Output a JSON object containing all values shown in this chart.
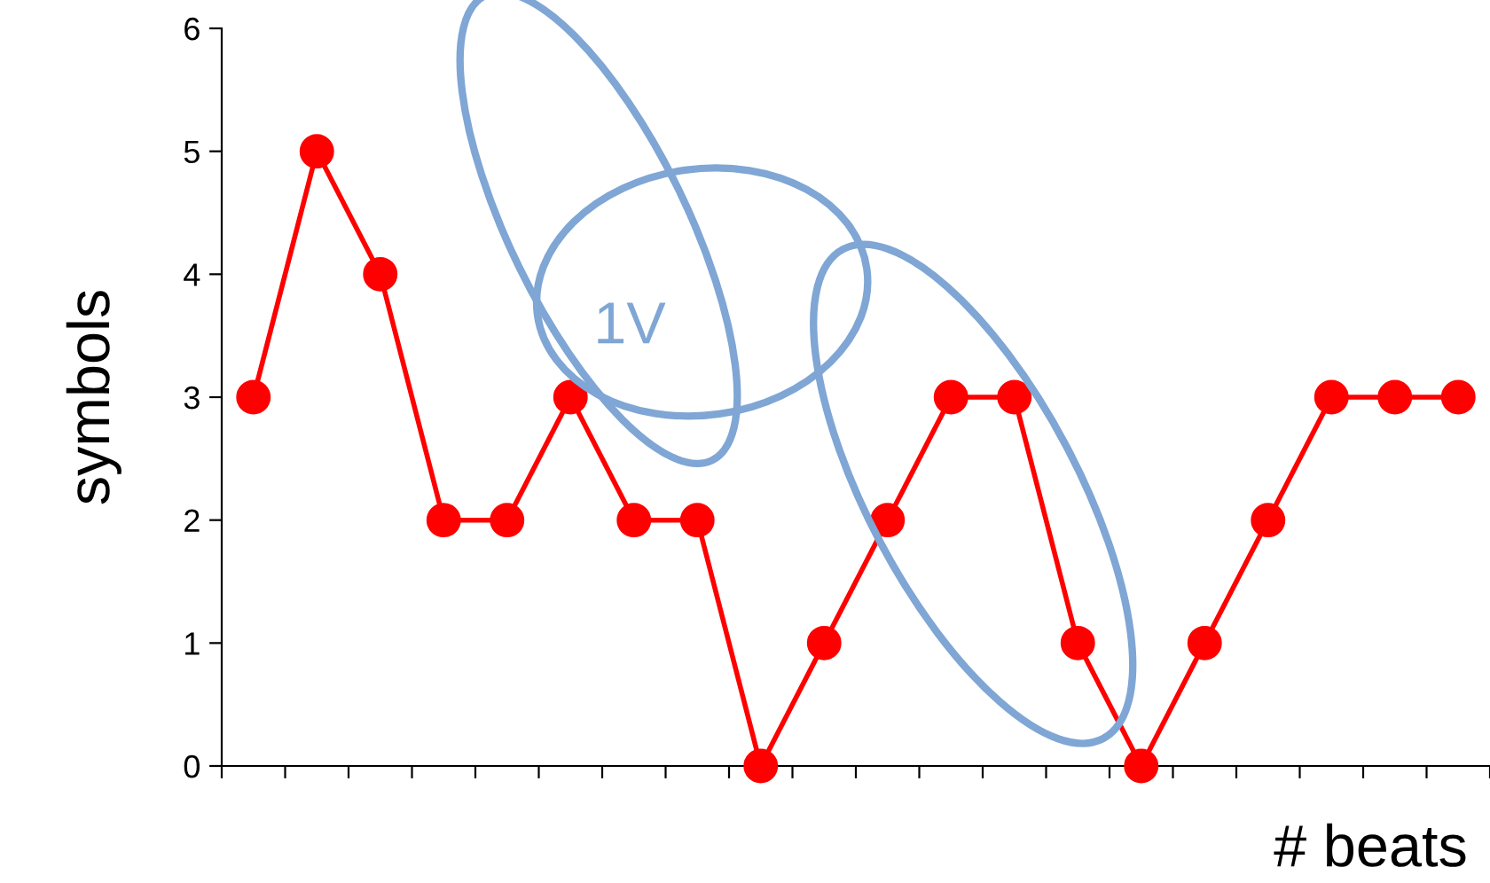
{
  "chart_data": {
    "type": "line",
    "xlabel": "# beats",
    "ylabel": "symbols",
    "annotations": [
      "1V"
    ],
    "categories": [
      null,
      null,
      null,
      null,
      null,
      null,
      null,
      null,
      null,
      null,
      null,
      null,
      null,
      null,
      null,
      null,
      null,
      null,
      null,
      null
    ],
    "series": [
      {
        "color": "#ff0000",
        "values": [
          3,
          5,
          4,
          2,
          2,
          3,
          2,
          2,
          0,
          1,
          2,
          3,
          3,
          1,
          0,
          1,
          2,
          3,
          3,
          3
        ]
      }
    ],
    "ylim": [
      0,
      6
    ],
    "yticks": [
      0,
      1,
      2,
      3,
      4,
      5,
      6
    ],
    "grid": false,
    "legend": false,
    "marker": "circle",
    "line_style": "solid"
  }
}
